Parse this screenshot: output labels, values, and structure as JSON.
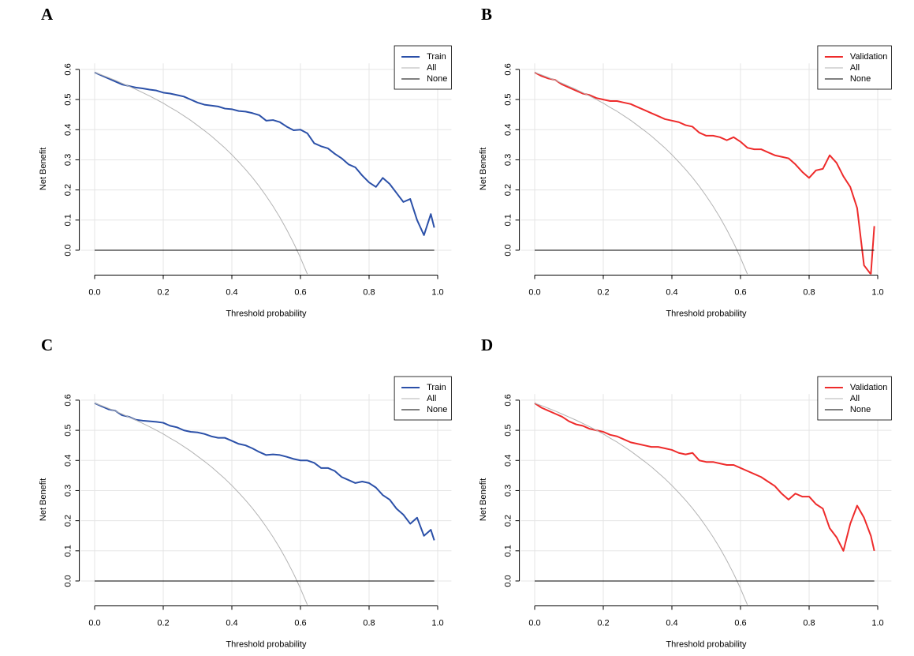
{
  "chart_data": [
    {
      "type": "line",
      "panel": "A",
      "xlabel": "Threshold probability",
      "ylabel": "Net Benefit",
      "x": [
        0,
        0.02,
        0.04,
        0.06,
        0.08,
        0.1,
        0.12,
        0.14,
        0.16,
        0.18,
        0.2,
        0.22,
        0.24,
        0.26,
        0.28,
        0.3,
        0.32,
        0.34,
        0.36,
        0.38,
        0.4,
        0.42,
        0.44,
        0.46,
        0.48,
        0.5,
        0.52,
        0.54,
        0.56,
        0.58,
        0.6,
        0.62,
        0.64,
        0.66,
        0.68,
        0.7,
        0.72,
        0.74,
        0.76,
        0.78,
        0.8,
        0.82,
        0.84,
        0.86,
        0.88,
        0.9,
        0.92,
        0.94,
        0.96,
        0.98,
        0.99
      ],
      "series": [
        {
          "name": "Train",
          "color": "#2b50a8",
          "width": 2,
          "values": [
            0.59,
            0.58,
            0.57,
            0.56,
            0.55,
            0.545,
            0.54,
            0.537,
            0.533,
            0.53,
            0.523,
            0.52,
            0.515,
            0.51,
            0.5,
            0.49,
            0.483,
            0.48,
            0.477,
            0.47,
            0.468,
            0.462,
            0.46,
            0.455,
            0.448,
            0.43,
            0.432,
            0.425,
            0.41,
            0.398,
            0.4,
            0.388,
            0.355,
            0.345,
            0.338,
            0.32,
            0.305,
            0.285,
            0.275,
            0.248,
            0.225,
            0.21,
            0.24,
            0.22,
            0.19,
            0.16,
            0.17,
            0.1,
            0.05,
            0.12,
            0.075
          ]
        },
        {
          "name": "All",
          "color": "#b3b3b3",
          "width": 1,
          "values": [
            0.59,
            0.582,
            0.573,
            0.564,
            0.554,
            0.544,
            0.534,
            0.523,
            0.512,
            0.5,
            0.488,
            0.474,
            0.461,
            0.446,
            0.431,
            0.414,
            0.397,
            0.379,
            0.359,
            0.339,
            0.317,
            0.293,
            0.268,
            0.241,
            0.212,
            0.18,
            0.146,
            0.109,
            0.068,
            0.024,
            -0.025,
            -0.079,
            null,
            null,
            null,
            null,
            null,
            null,
            null,
            null,
            null,
            null,
            null,
            null,
            null,
            null,
            null,
            null,
            null,
            null,
            null
          ]
        },
        {
          "name": "None",
          "color": "#000000",
          "width": 1,
          "values": [
            0,
            0,
            0,
            0,
            0,
            0,
            0,
            0,
            0,
            0,
            0,
            0,
            0,
            0,
            0,
            0,
            0,
            0,
            0,
            0,
            0,
            0,
            0,
            0,
            0,
            0,
            0,
            0,
            0,
            0,
            0,
            0,
            0,
            0,
            0,
            0,
            0,
            0,
            0,
            0,
            0,
            0,
            0,
            0,
            0,
            0,
            0,
            0,
            0,
            0,
            0
          ]
        }
      ],
      "xlim": [
        -0.04,
        1.04
      ],
      "ylim": [
        -0.08,
        0.62
      ],
      "xticks": [
        {
          "value": 0,
          "label": "0.0"
        },
        0.2,
        0.4,
        0.6,
        0.8,
        {
          "value": 1,
          "label": "1.0"
        }
      ],
      "yticks": [
        {
          "value": 0,
          "label": "0.0"
        },
        0.1,
        0.2,
        0.3,
        0.4,
        0.5,
        0.6
      ],
      "grid": true,
      "legend": "topright"
    },
    {
      "type": "line",
      "panel": "B",
      "xlabel": "Threshold probability",
      "ylabel": "Net Benefit",
      "x": [
        0,
        0.02,
        0.04,
        0.06,
        0.08,
        0.1,
        0.12,
        0.14,
        0.16,
        0.18,
        0.2,
        0.22,
        0.24,
        0.26,
        0.28,
        0.3,
        0.32,
        0.34,
        0.36,
        0.38,
        0.4,
        0.42,
        0.44,
        0.46,
        0.48,
        0.5,
        0.52,
        0.54,
        0.56,
        0.58,
        0.6,
        0.62,
        0.64,
        0.66,
        0.68,
        0.7,
        0.72,
        0.74,
        0.76,
        0.78,
        0.8,
        0.82,
        0.84,
        0.86,
        0.88,
        0.9,
        0.92,
        0.94,
        0.96,
        0.98,
        0.99
      ],
      "series": [
        {
          "name": "Validation",
          "color": "#ee2b2b",
          "width": 2,
          "values": [
            0.59,
            0.578,
            0.57,
            0.565,
            0.55,
            0.54,
            0.53,
            0.52,
            0.515,
            0.505,
            0.5,
            0.495,
            0.495,
            0.49,
            0.485,
            0.475,
            0.465,
            0.455,
            0.445,
            0.435,
            0.43,
            0.425,
            0.415,
            0.41,
            0.39,
            0.38,
            0.38,
            0.375,
            0.365,
            0.375,
            0.36,
            0.34,
            0.335,
            0.335,
            0.325,
            0.315,
            0.31,
            0.305,
            0.285,
            0.26,
            0.24,
            0.265,
            0.27,
            0.315,
            0.29,
            0.245,
            0.21,
            0.14,
            -0.05,
            -0.08,
            0.08
          ]
        },
        {
          "name": "All",
          "color": "#b3b3b3",
          "width": 1,
          "values": [
            0.59,
            0.582,
            0.573,
            0.564,
            0.554,
            0.544,
            0.534,
            0.523,
            0.512,
            0.5,
            0.488,
            0.474,
            0.461,
            0.446,
            0.431,
            0.414,
            0.397,
            0.379,
            0.359,
            0.339,
            0.317,
            0.293,
            0.268,
            0.241,
            0.212,
            0.18,
            0.146,
            0.109,
            0.068,
            0.024,
            -0.025,
            -0.079,
            null,
            null,
            null,
            null,
            null,
            null,
            null,
            null,
            null,
            null,
            null,
            null,
            null,
            null,
            null,
            null,
            null,
            null,
            null
          ]
        },
        {
          "name": "None",
          "color": "#000000",
          "width": 1,
          "values": [
            0,
            0,
            0,
            0,
            0,
            0,
            0,
            0,
            0,
            0,
            0,
            0,
            0,
            0,
            0,
            0,
            0,
            0,
            0,
            0,
            0,
            0,
            0,
            0,
            0,
            0,
            0,
            0,
            0,
            0,
            0,
            0,
            0,
            0,
            0,
            0,
            0,
            0,
            0,
            0,
            0,
            0,
            0,
            0,
            0,
            0,
            0,
            0,
            0,
            0,
            0
          ]
        }
      ],
      "xlim": [
        -0.04,
        1.04
      ],
      "ylim": [
        -0.08,
        0.62
      ],
      "xticks": [
        {
          "value": 0,
          "label": "0.0"
        },
        0.2,
        0.4,
        0.6,
        0.8,
        {
          "value": 1,
          "label": "1.0"
        }
      ],
      "yticks": [
        {
          "value": 0,
          "label": "0.0"
        },
        0.1,
        0.2,
        0.3,
        0.4,
        0.5,
        0.6
      ],
      "grid": true,
      "legend": "topright"
    },
    {
      "type": "line",
      "panel": "C",
      "xlabel": "Threshold probability",
      "ylabel": "Net Benefit",
      "x": [
        0,
        0.02,
        0.04,
        0.06,
        0.08,
        0.1,
        0.12,
        0.14,
        0.16,
        0.18,
        0.2,
        0.22,
        0.24,
        0.26,
        0.28,
        0.3,
        0.32,
        0.34,
        0.36,
        0.38,
        0.4,
        0.42,
        0.44,
        0.46,
        0.48,
        0.5,
        0.52,
        0.54,
        0.56,
        0.58,
        0.6,
        0.62,
        0.64,
        0.66,
        0.68,
        0.7,
        0.72,
        0.74,
        0.76,
        0.78,
        0.8,
        0.82,
        0.84,
        0.86,
        0.88,
        0.9,
        0.92,
        0.94,
        0.96,
        0.98,
        0.99
      ],
      "series": [
        {
          "name": "Train",
          "color": "#2b50a8",
          "width": 2,
          "values": [
            0.59,
            0.58,
            0.57,
            0.565,
            0.55,
            0.545,
            0.535,
            0.532,
            0.53,
            0.528,
            0.525,
            0.515,
            0.51,
            0.5,
            0.495,
            0.493,
            0.488,
            0.48,
            0.475,
            0.475,
            0.465,
            0.455,
            0.45,
            0.44,
            0.428,
            0.418,
            0.42,
            0.418,
            0.412,
            0.405,
            0.4,
            0.4,
            0.392,
            0.375,
            0.375,
            0.365,
            0.345,
            0.335,
            0.325,
            0.33,
            0.325,
            0.31,
            0.285,
            0.27,
            0.24,
            0.22,
            0.19,
            0.21,
            0.15,
            0.17,
            0.135
          ]
        },
        {
          "name": "All",
          "color": "#b3b3b3",
          "width": 1,
          "values": [
            0.59,
            0.582,
            0.573,
            0.564,
            0.554,
            0.544,
            0.534,
            0.523,
            0.512,
            0.5,
            0.488,
            0.474,
            0.461,
            0.446,
            0.431,
            0.414,
            0.397,
            0.379,
            0.359,
            0.339,
            0.317,
            0.293,
            0.268,
            0.241,
            0.212,
            0.18,
            0.146,
            0.109,
            0.068,
            0.024,
            -0.025,
            -0.079,
            null,
            null,
            null,
            null,
            null,
            null,
            null,
            null,
            null,
            null,
            null,
            null,
            null,
            null,
            null,
            null,
            null,
            null,
            null
          ]
        },
        {
          "name": "None",
          "color": "#000000",
          "width": 1,
          "values": [
            0,
            0,
            0,
            0,
            0,
            0,
            0,
            0,
            0,
            0,
            0,
            0,
            0,
            0,
            0,
            0,
            0,
            0,
            0,
            0,
            0,
            0,
            0,
            0,
            0,
            0,
            0,
            0,
            0,
            0,
            0,
            0,
            0,
            0,
            0,
            0,
            0,
            0,
            0,
            0,
            0,
            0,
            0,
            0,
            0,
            0,
            0,
            0,
            0,
            0,
            0
          ]
        }
      ],
      "xlim": [
        -0.04,
        1.04
      ],
      "ylim": [
        -0.08,
        0.62
      ],
      "xticks": [
        {
          "value": 0,
          "label": "0.0"
        },
        0.2,
        0.4,
        0.6,
        0.8,
        {
          "value": 1,
          "label": "1.0"
        }
      ],
      "yticks": [
        {
          "value": 0,
          "label": "0.0"
        },
        0.1,
        0.2,
        0.3,
        0.4,
        0.5,
        0.6
      ],
      "grid": true,
      "legend": "topright"
    },
    {
      "type": "line",
      "panel": "D",
      "xlabel": "Threshold probability",
      "ylabel": "Net Benefit",
      "x": [
        0,
        0.02,
        0.04,
        0.06,
        0.08,
        0.1,
        0.12,
        0.14,
        0.16,
        0.18,
        0.2,
        0.22,
        0.24,
        0.26,
        0.28,
        0.3,
        0.32,
        0.34,
        0.36,
        0.38,
        0.4,
        0.42,
        0.44,
        0.46,
        0.48,
        0.5,
        0.52,
        0.54,
        0.56,
        0.58,
        0.6,
        0.62,
        0.64,
        0.66,
        0.68,
        0.7,
        0.72,
        0.74,
        0.76,
        0.78,
        0.8,
        0.82,
        0.84,
        0.86,
        0.88,
        0.9,
        0.92,
        0.94,
        0.96,
        0.98,
        0.99
      ],
      "series": [
        {
          "name": "Validation",
          "color": "#ee2b2b",
          "width": 2,
          "values": [
            0.59,
            0.575,
            0.565,
            0.555,
            0.545,
            0.53,
            0.52,
            0.515,
            0.505,
            0.5,
            0.495,
            0.485,
            0.48,
            0.47,
            0.46,
            0.455,
            0.45,
            0.445,
            0.445,
            0.44,
            0.435,
            0.425,
            0.42,
            0.425,
            0.4,
            0.395,
            0.395,
            0.39,
            0.385,
            0.385,
            0.375,
            0.365,
            0.355,
            0.345,
            0.33,
            0.315,
            0.29,
            0.27,
            0.29,
            0.28,
            0.28,
            0.255,
            0.24,
            0.175,
            0.145,
            0.1,
            0.19,
            0.25,
            0.21,
            0.15,
            0.1
          ]
        },
        {
          "name": "All",
          "color": "#b3b3b3",
          "width": 1,
          "values": [
            0.59,
            0.582,
            0.573,
            0.564,
            0.554,
            0.544,
            0.534,
            0.523,
            0.512,
            0.5,
            0.488,
            0.474,
            0.461,
            0.446,
            0.431,
            0.414,
            0.397,
            0.379,
            0.359,
            0.339,
            0.317,
            0.293,
            0.268,
            0.241,
            0.212,
            0.18,
            0.146,
            0.109,
            0.068,
            0.024,
            -0.025,
            -0.079,
            null,
            null,
            null,
            null,
            null,
            null,
            null,
            null,
            null,
            null,
            null,
            null,
            null,
            null,
            null,
            null,
            null,
            null,
            null
          ]
        },
        {
          "name": "None",
          "color": "#000000",
          "width": 1,
          "values": [
            0,
            0,
            0,
            0,
            0,
            0,
            0,
            0,
            0,
            0,
            0,
            0,
            0,
            0,
            0,
            0,
            0,
            0,
            0,
            0,
            0,
            0,
            0,
            0,
            0,
            0,
            0,
            0,
            0,
            0,
            0,
            0,
            0,
            0,
            0,
            0,
            0,
            0,
            0,
            0,
            0,
            0,
            0,
            0,
            0,
            0,
            0,
            0,
            0,
            0,
            0
          ]
        }
      ],
      "xlim": [
        -0.04,
        1.04
      ],
      "ylim": [
        -0.08,
        0.62
      ],
      "xticks": [
        {
          "value": 0,
          "label": "0.0"
        },
        0.2,
        0.4,
        0.6,
        0.8,
        {
          "value": 1,
          "label": "1.0"
        }
      ],
      "yticks": [
        {
          "value": 0,
          "label": "0.0"
        },
        0.1,
        0.2,
        0.3,
        0.4,
        0.5,
        0.6
      ],
      "grid": true,
      "legend": "topright"
    }
  ]
}
